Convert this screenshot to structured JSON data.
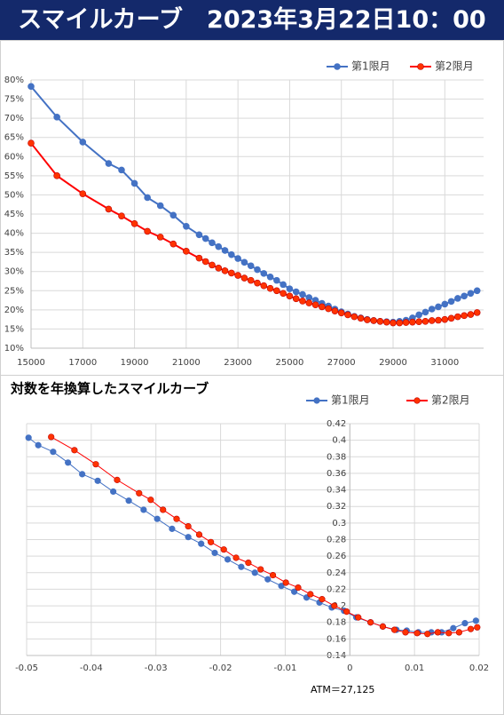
{
  "header": {
    "title": "スマイルカーブ　2023年3月22日10：00"
  },
  "chart_data": [
    {
      "type": "line",
      "legend": "top-right",
      "grid": true,
      "x": [
        15000,
        16000,
        17000,
        18000,
        18500,
        19000,
        19500,
        20000,
        20500,
        21000,
        21500,
        21750,
        22000,
        22250,
        22500,
        22750,
        23000,
        23250,
        23500,
        23750,
        24000,
        24250,
        24500,
        24750,
        25000,
        25250,
        25500,
        25750,
        26000,
        26250,
        26500,
        26750,
        27000,
        27250,
        27500,
        27750,
        28000,
        28250,
        28500,
        28750,
        29000,
        29250,
        29500,
        29750,
        30000,
        30250,
        30500,
        30750,
        31000,
        31250,
        31500,
        31750,
        32000,
        32250
      ],
      "series": [
        {
          "name": "第1限月",
          "color": "#4472c4",
          "marker_color": "#4472c4",
          "values": [
            78.3,
            70.3,
            63.8,
            58.2,
            56.5,
            53,
            49.3,
            47.2,
            44.7,
            41.8,
            39.6,
            38.6,
            37.5,
            36.5,
            35.5,
            34.4,
            33.4,
            32.4,
            31.5,
            30.5,
            29.5,
            28.6,
            27.7,
            26.6,
            25.5,
            24.7,
            24.0,
            23.2,
            22.5,
            21.7,
            21.0,
            20.2,
            19.5,
            18.9,
            18.3,
            17.9,
            17.5,
            17.2,
            17.0,
            16.9,
            16.8,
            17.0,
            17.3,
            17.9,
            18.7,
            19.4,
            20.2,
            20.8,
            21.5,
            22.2,
            23.0,
            23.6,
            24.3,
            25.0
          ]
        },
        {
          "name": "第2限月",
          "color": "#ff0000",
          "marker_color": "#ff3300",
          "values": [
            63.5,
            55,
            50.3,
            46.3,
            44.5,
            42.5,
            40.5,
            39,
            37.2,
            35.3,
            33.5,
            32.6,
            31.7,
            30.9,
            30.2,
            29.6,
            29.0,
            28.3,
            27.7,
            27.0,
            26.3,
            25.6,
            25.0,
            24.3,
            23.6,
            22.9,
            22.3,
            21.8,
            21.3,
            20.8,
            20.3,
            19.7,
            19.2,
            18.7,
            18.2,
            17.8,
            17.4,
            17.2,
            17.0,
            16.8,
            16.6,
            16.6,
            16.7,
            16.8,
            16.9,
            17.0,
            17.2,
            17.3,
            17.5,
            17.8,
            18.2,
            18.5,
            18.8,
            19.3
          ]
        }
      ],
      "xlim": [
        15000,
        32500
      ],
      "xticks": [
        15000,
        17000,
        19000,
        21000,
        23000,
        25000,
        27000,
        29000,
        31000
      ],
      "ylim": [
        10,
        80
      ],
      "yticks": [
        {
          "value": 10,
          "label": "10%"
        },
        {
          "value": 15,
          "label": "15%"
        },
        {
          "value": 20,
          "label": "20%"
        },
        {
          "value": 25,
          "label": "25%"
        },
        {
          "value": 30,
          "label": "30%"
        },
        {
          "value": 35,
          "label": "35%"
        },
        {
          "value": 40,
          "label": "40%"
        },
        {
          "value": 45,
          "label": "45%"
        },
        {
          "value": 50,
          "label": "50%"
        },
        {
          "value": 55,
          "label": "55%"
        },
        {
          "value": 60,
          "label": "60%"
        },
        {
          "value": 65,
          "label": "65%"
        },
        {
          "value": 70,
          "label": "70%"
        },
        {
          "value": 75,
          "label": "75%"
        },
        {
          "value": 80,
          "label": "80%"
        }
      ]
    },
    {
      "type": "line",
      "title": "対数を年換算したスマイルカーブ",
      "annotation": "ATM＝27,125",
      "legend": "top-right",
      "grid": true,
      "series": [
        {
          "name": "第1限月",
          "color": "#4472c4",
          "marker_color": "#4472c4",
          "x": [
            -0.0497,
            -0.0482,
            -0.0459,
            -0.0436,
            -0.0414,
            -0.039,
            -0.0366,
            -0.0342,
            -0.0319,
            -0.0298,
            -0.0275,
            -0.025,
            -0.023,
            -0.0209,
            -0.0189,
            -0.0168,
            -0.0147,
            -0.0127,
            -0.0106,
            -0.0086,
            -0.0067,
            -0.0047,
            -0.0028,
            -0.0009,
            0.001,
            0.0032,
            0.0051,
            0.0072,
            0.0088,
            0.0106,
            0.0126,
            0.0142,
            0.016,
            0.0178,
            0.0195
          ],
          "values": [
            0.403,
            0.394,
            0.386,
            0.373,
            0.359,
            0.351,
            0.338,
            0.327,
            0.316,
            0.305,
            0.293,
            0.283,
            0.275,
            0.264,
            0.256,
            0.247,
            0.24,
            0.232,
            0.224,
            0.217,
            0.21,
            0.204,
            0.198,
            0.194,
            0.186,
            0.18,
            0.175,
            0.171,
            0.17,
            0.168,
            0.168,
            0.168,
            0.173,
            0.179,
            0.182
          ]
        },
        {
          "name": "第2限月",
          "color": "#ff0000",
          "marker_color": "#ff3300",
          "x": [
            -0.0462,
            -0.0426,
            -0.0393,
            -0.036,
            -0.0326,
            -0.0308,
            -0.0289,
            -0.0268,
            -0.025,
            -0.0233,
            -0.0215,
            -0.0195,
            -0.0176,
            -0.0157,
            -0.0138,
            -0.0119,
            -0.0099,
            -0.008,
            -0.0061,
            -0.0043,
            -0.0024,
            -0.0005,
            0.0013,
            0.0032,
            0.0051,
            0.0069,
            0.0086,
            0.0104,
            0.012,
            0.0136,
            0.0153,
            0.0169,
            0.0187,
            0.0197
          ],
          "values": [
            0.404,
            0.388,
            0.371,
            0.352,
            0.336,
            0.328,
            0.316,
            0.305,
            0.296,
            0.286,
            0.277,
            0.268,
            0.258,
            0.252,
            0.244,
            0.237,
            0.228,
            0.222,
            0.214,
            0.208,
            0.2,
            0.193,
            0.186,
            0.18,
            0.175,
            0.171,
            0.168,
            0.167,
            0.166,
            0.168,
            0.167,
            0.168,
            0.172,
            0.174
          ]
        }
      ],
      "xlim": [
        -0.05,
        0.02
      ],
      "xticks": [
        -0.05,
        -0.04,
        -0.03,
        -0.02,
        -0.01,
        0,
        0.01,
        0.02
      ],
      "ylim": [
        0.14,
        0.42
      ],
      "yticks": [
        0.14,
        0.16,
        0.18,
        0.2,
        0.22,
        0.24,
        0.26,
        0.28,
        0.3,
        0.32,
        0.34,
        0.36,
        0.38,
        0.4,
        0.42
      ]
    }
  ]
}
